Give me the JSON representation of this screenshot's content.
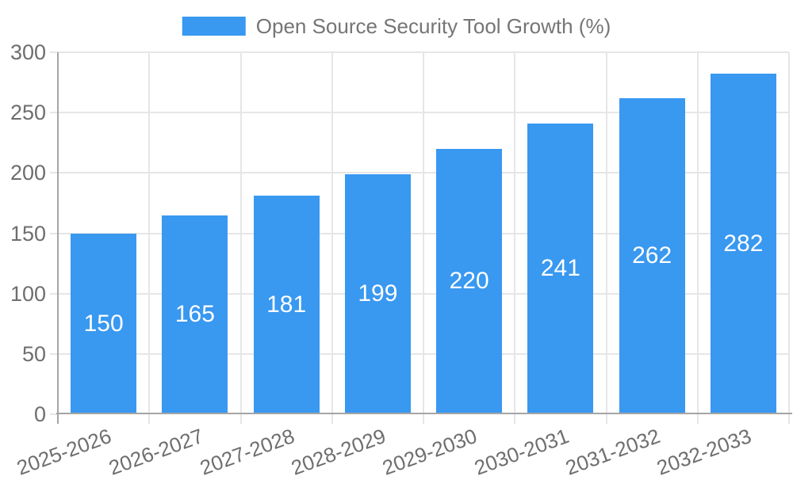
{
  "chart_data": {
    "type": "bar",
    "title": "Open Source Security Tool Growth (%)",
    "legend_label": "Open Source Security Tool Growth (%)",
    "legend_position": "top",
    "categories": [
      "2025-2026",
      "2026-2027",
      "2027-2028",
      "2028-2029",
      "2029-2030",
      "2030-2031",
      "2031-2032",
      "2032-2033"
    ],
    "values": [
      150,
      165,
      181,
      199,
      220,
      241,
      262,
      282
    ],
    "value_labels_shown": true,
    "xlabel": "",
    "ylabel": "",
    "ylim": [
      0,
      300
    ],
    "yticks": [
      0,
      50,
      100,
      150,
      200,
      250,
      300
    ],
    "grid": "both",
    "x_label_rotation_deg": -20,
    "colors": {
      "bar": "#3998f0",
      "value_label": "#ffffff",
      "grid": "#e6e6e6",
      "axis": "#a5a5a5",
      "tick_label": "#6e6e6e",
      "legend_text": "#757575",
      "background": "#ffffff"
    }
  }
}
